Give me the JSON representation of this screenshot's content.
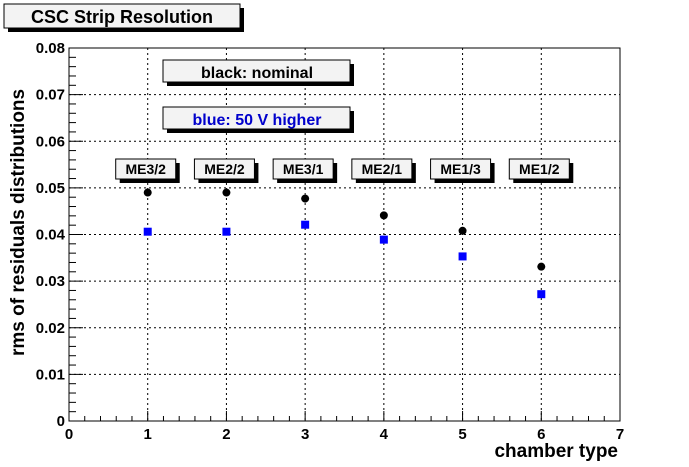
{
  "chart_data": {
    "type": "scatter",
    "title": "CSC Strip Resolution",
    "xlabel": "chamber type",
    "ylabel": "rms of residuals distributions",
    "xlim": [
      0,
      7
    ],
    "ylim": [
      0,
      0.08
    ],
    "x_ticks": [
      "0",
      "1",
      "2",
      "3",
      "4",
      "5",
      "6",
      "7"
    ],
    "y_ticks": [
      "0",
      "0.01",
      "0.02",
      "0.03",
      "0.04",
      "0.05",
      "0.06",
      "0.07",
      "0.08"
    ],
    "grid": true,
    "series": [
      {
        "name": "black: nominal",
        "color": "#000000",
        "marker": "circle",
        "x": [
          1,
          2,
          3,
          4,
          5,
          6
        ],
        "y": [
          0.049,
          0.049,
          0.0477,
          0.0441,
          0.0408,
          0.0331
        ]
      },
      {
        "name": "blue: 50 V higher",
        "color": "#0000ff",
        "marker": "square",
        "x": [
          1,
          2,
          3,
          4,
          5,
          6
        ],
        "y": [
          0.0406,
          0.0406,
          0.0421,
          0.0389,
          0.0353,
          0.0272
        ]
      }
    ],
    "chamber_labels": [
      "ME3/2",
      "ME2/2",
      "ME3/1",
      "ME2/1",
      "ME1/3",
      "ME1/2"
    ],
    "legend_notes": [
      {
        "text": "black: nominal",
        "color": "#000000"
      },
      {
        "text": "blue: 50 V higher",
        "color": "#0000cc"
      }
    ]
  }
}
